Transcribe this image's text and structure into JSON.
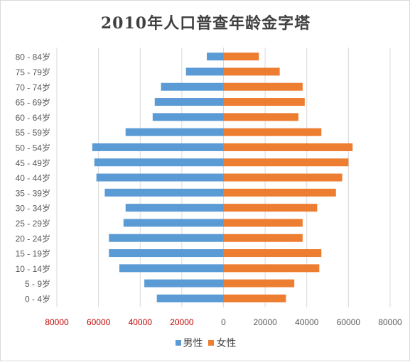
{
  "chart_data": {
    "type": "bar",
    "orientation": "horizontal",
    "title": "2010年人口普查年龄金字塔",
    "categories": [
      "0 - 4岁",
      "5 - 9岁",
      "10 - 14岁",
      "15 - 19岁",
      "20 - 24岁",
      "25 - 29岁",
      "30 - 34岁",
      "35 - 39岁",
      "40 - 44岁",
      "45 - 49岁",
      "50 - 54岁",
      "55 - 59岁",
      "60 - 64岁",
      "65 - 69岁",
      "70 - 74岁",
      "75 - 79岁",
      "80 - 84岁"
    ],
    "series": [
      {
        "name": "男性",
        "color": "#5b9bd5",
        "direction": "left",
        "values": [
          32000,
          38000,
          50000,
          55000,
          55000,
          48000,
          47000,
          57000,
          61000,
          62000,
          63000,
          47000,
          34000,
          33000,
          30000,
          18000,
          8000
        ]
      },
      {
        "name": "女性",
        "color": "#ed7d31",
        "direction": "right",
        "values": [
          30000,
          34000,
          46000,
          47000,
          38000,
          38000,
          45000,
          54000,
          57000,
          60000,
          62000,
          47000,
          36000,
          39000,
          38000,
          27000,
          17000
        ]
      }
    ],
    "xlim": [
      -80000,
      80000
    ],
    "x_ticks": [
      -80000,
      -60000,
      -40000,
      -20000,
      0,
      20000,
      40000,
      60000,
      80000
    ],
    "x_tick_labels": [
      "80000",
      "60000",
      "40000",
      "20000",
      "0",
      "20000",
      "40000",
      "60000",
      "80000"
    ],
    "negative_tick_label_color": "#c00000",
    "tick_label_color": "#595959",
    "grid": true,
    "grid_color": "#d9d9d9",
    "legend_position": "bottom"
  }
}
